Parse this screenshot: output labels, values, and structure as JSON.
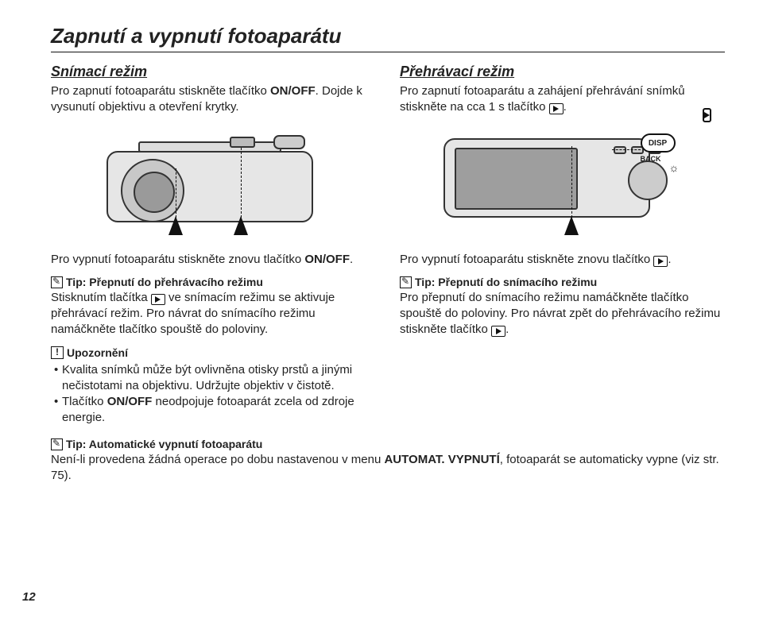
{
  "title": "Zapnutí a vypnutí fotoaparátu",
  "left": {
    "subheading": "Snímací režim",
    "intro_pre": "Pro zapnutí fotoaparátu stiskněte tlačítko ",
    "intro_bold": "ON/OFF",
    "intro_post": ". Dojde k vysunutí objektivu a otevření krytky.",
    "off_pre": "Pro vypnutí fotoaparátu stiskněte znovu tlačítko ",
    "off_bold": "ON/OFF",
    "off_post": ".",
    "tip1_title": "Tip: Přepnutí do přehrávacího režimu",
    "tip1_body_pre": "Stisknutím tlačítka ",
    "tip1_body_post": " ve snímacím režimu se aktivuje přehrávací režim. Pro návrat do snímacího režimu namáčkněte tlačítko spouště do poloviny.",
    "warn_title": "Upozornění",
    "warn_b1": "Kvalita snímků může být ovlivněna otisky prstů a jinými nečistotami na objektivu. Udržujte objektiv v čistotě.",
    "warn_b2_pre": "Tlačítko ",
    "warn_b2_bold": "ON/OFF",
    "warn_b2_post": " neodpojuje fotoaparát zcela od zdroje energie."
  },
  "right": {
    "subheading": "Přehrávací režim",
    "intro_pre": "Pro zapnutí fotoaparátu a zahájení přehrávání snímků stiskněte na cca 1 s tlačítko ",
    "intro_post": ".",
    "off_pre": "Pro vypnutí fotoaparátu stiskněte znovu tlačítko ",
    "off_post": ".",
    "tip2_title": "Tip: Přepnutí do snímacího režimu",
    "tip2_body_pre": "Pro přepnutí do snímacího režimu namáčkněte tlačítko spouště do poloviny. Pro návrat zpět do přehrávacího režimu stiskněte tlačítko ",
    "tip2_body_post": "."
  },
  "callout": {
    "disp": "DISP",
    "back": "BACK"
  },
  "footer": {
    "tip_title": "Tip: Automatické vypnutí fotoaparátu",
    "body_pre": "Není-li provedena žádná operace po dobu nastavenou v menu ",
    "body_bold": "AUTOMAT. VYPNUTÍ",
    "body_post": ", fotoaparát se automaticky vypne (viz str. 75)."
  },
  "page_number": "12"
}
